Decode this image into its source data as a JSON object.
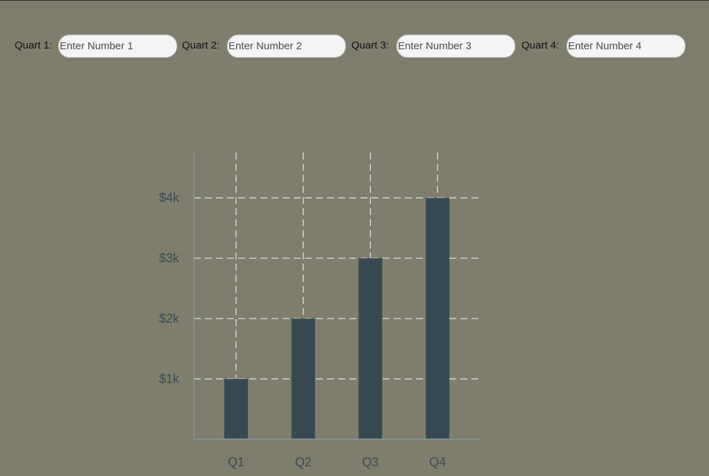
{
  "inputs": [
    {
      "label": "Quart 1:",
      "placeholder": "Enter Number 1",
      "value": ""
    },
    {
      "label": "Quart 2:",
      "placeholder": "Enter Number 2",
      "value": ""
    },
    {
      "label": "Quart 3:",
      "placeholder": "Enter Number 3",
      "value": ""
    },
    {
      "label": "Quart 4:",
      "placeholder": "Enter Number 4",
      "value": ""
    }
  ],
  "colors": {
    "background": "#7f7e6c",
    "bar": "#374a52",
    "axis": "#7e9097",
    "grid": "#e4e4e4",
    "tick_text": "#3a4a52"
  },
  "chart_data": {
    "type": "bar",
    "categories": [
      "Q1",
      "Q2",
      "Q3",
      "Q4"
    ],
    "values": [
      1000,
      2000,
      3000,
      4000
    ],
    "yticks": [
      1000,
      2000,
      3000,
      4000
    ],
    "ytick_labels": [
      "$1k",
      "$2k",
      "$3k",
      "$4k"
    ],
    "title": "",
    "xlabel": "",
    "ylabel": "",
    "ylim": [
      0,
      4750
    ],
    "grid": true,
    "grid_style": "dashed"
  }
}
